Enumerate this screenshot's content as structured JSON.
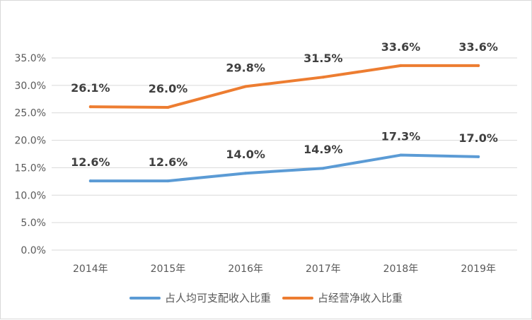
{
  "chart_data": {
    "type": "line",
    "categories": [
      "2014年",
      "2015年",
      "2016年",
      "2017年",
      "2018年",
      "2019年"
    ],
    "series": [
      {
        "name": "占人均可支配收入比重",
        "values": [
          12.6,
          12.6,
          14.0,
          14.9,
          17.3,
          17.0
        ],
        "labels": [
          "12.6%",
          "12.6%",
          "14.0%",
          "14.9%",
          "17.3%",
          "17.0%"
        ],
        "color": "#5b9bd5"
      },
      {
        "name": "占经营净收入比重",
        "values": [
          26.1,
          26.0,
          29.8,
          31.5,
          33.6,
          33.6
        ],
        "labels": [
          "26.1%",
          "26.0%",
          "29.8%",
          "31.5%",
          "33.6%",
          "33.6%"
        ],
        "color": "#ed7d31"
      }
    ],
    "ylim": [
      0,
      35
    ],
    "yticks": [
      "0.0%",
      "5.0%",
      "10.0%",
      "15.0%",
      "20.0%",
      "25.0%",
      "30.0%",
      "35.0%"
    ],
    "grid": true,
    "legend": "bottom",
    "gridColor": "#d9d9d9"
  }
}
